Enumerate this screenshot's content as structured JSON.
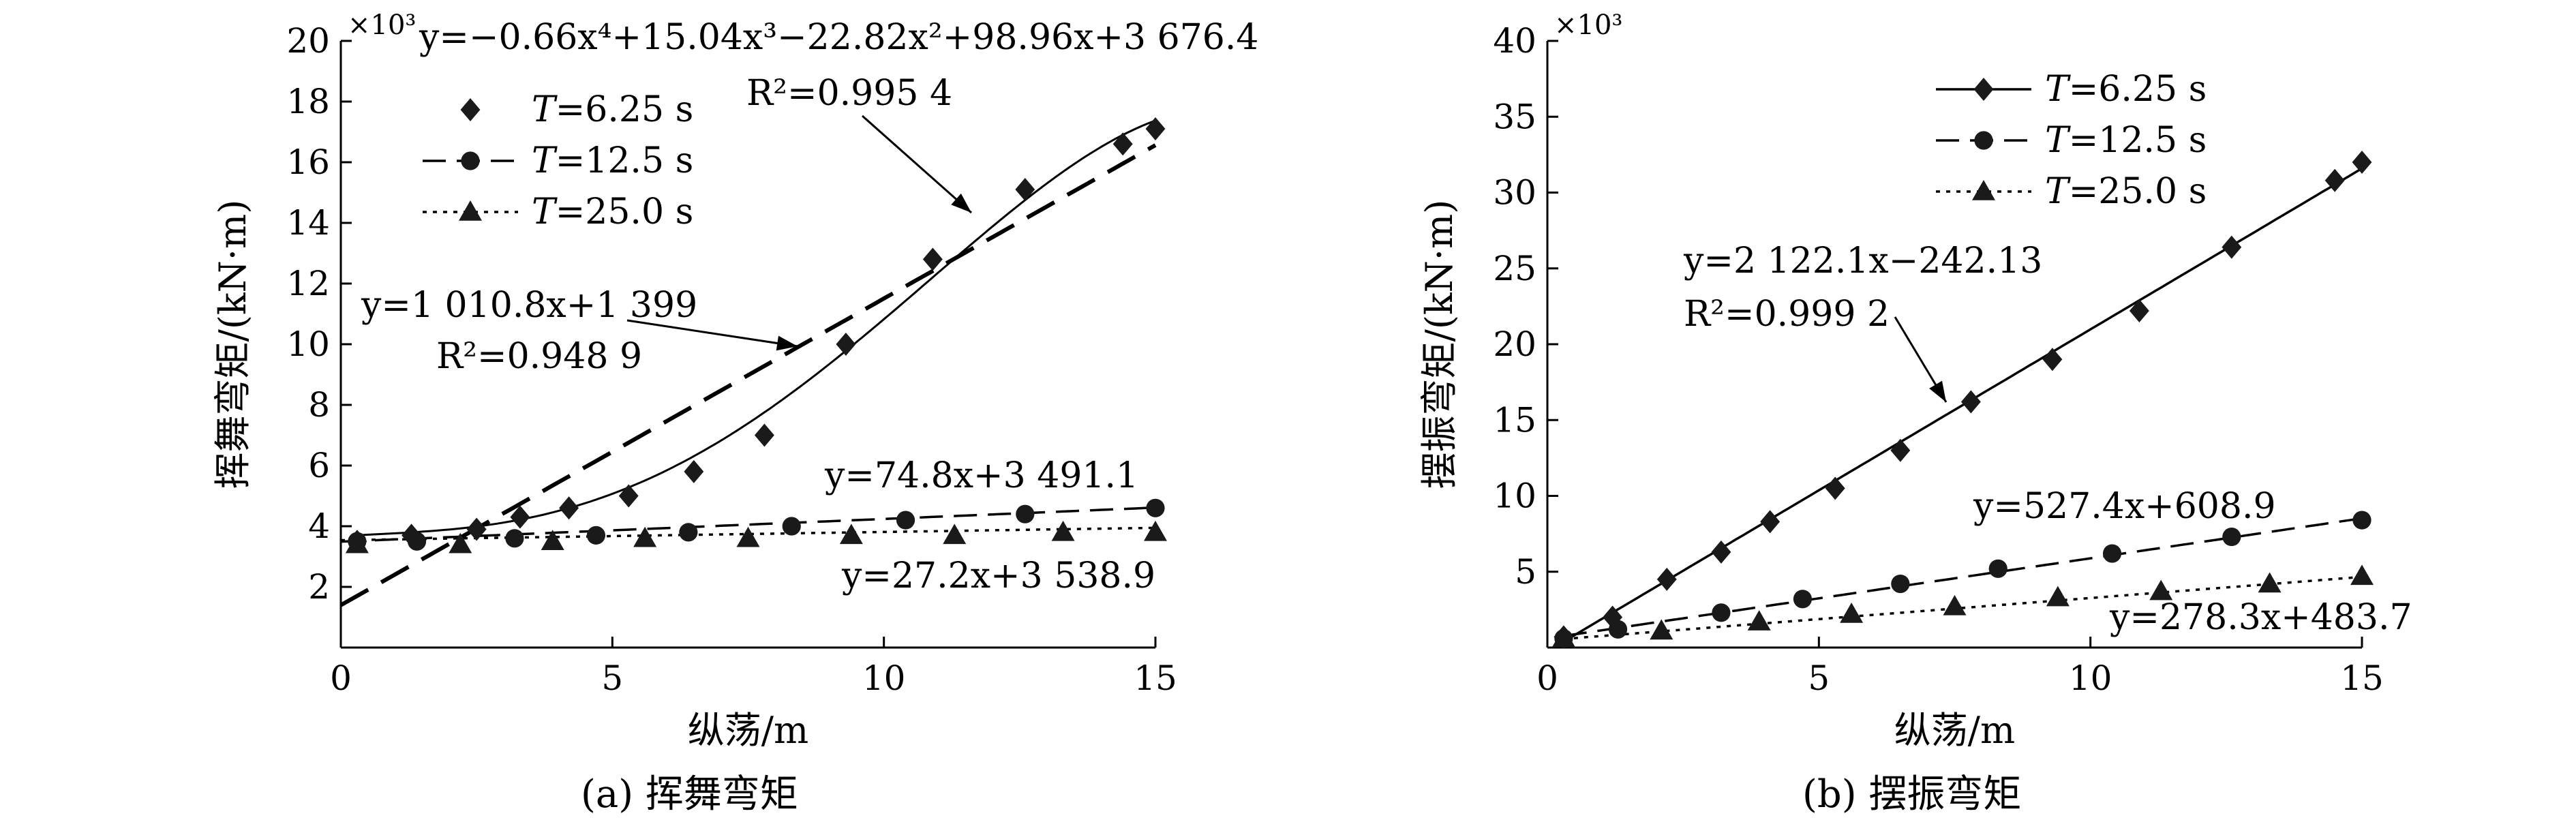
{
  "chart_data": [
    {
      "type": "scatter",
      "caption": "(a) 挥舞弯矩",
      "xlabel": "纵荡/m",
      "ylabel": "挥舞弯矩/(kN·m)",
      "y_multiplier": "×10³",
      "xlim": [
        0,
        15
      ],
      "ylim": [
        0,
        20
      ],
      "xticks": [
        0,
        5,
        10,
        15
      ],
      "yticks": [
        2,
        4,
        6,
        8,
        10,
        12,
        14,
        16,
        18,
        20
      ],
      "grid": false,
      "legend_position": "upper-left",
      "series": [
        {
          "name": "T=6.25 s",
          "legend_label": "=6.25 s",
          "marker": "diamond",
          "line": "none",
          "x": [
            0.3,
            1.3,
            2.5,
            3.3,
            4.2,
            5.3,
            6.5,
            7.8,
            9.3,
            10.9,
            12.6,
            14.4,
            15.0
          ],
          "y": [
            3.5,
            3.7,
            3.9,
            4.3,
            4.6,
            5.0,
            5.8,
            7.0,
            10.0,
            12.8,
            15.1,
            16.6,
            17.1
          ]
        },
        {
          "name": "T=12.5 s",
          "legend_label": "=12.5 s",
          "marker": "circle",
          "line": "dashed",
          "x": [
            0.3,
            1.4,
            3.2,
            4.7,
            6.4,
            8.3,
            10.4,
            12.6,
            15.0
          ],
          "y": [
            3.5,
            3.5,
            3.6,
            3.7,
            3.8,
            4.0,
            4.2,
            4.4,
            4.6
          ]
        },
        {
          "name": "T=25.0 s",
          "legend_label": "=25.0 s",
          "marker": "triangle",
          "line": "dotted",
          "x": [
            0.3,
            2.2,
            3.9,
            5.6,
            7.5,
            9.4,
            11.3,
            13.3,
            15.0
          ],
          "y": [
            3.4,
            3.4,
            3.5,
            3.6,
            3.6,
            3.7,
            3.7,
            3.8,
            3.8
          ]
        }
      ],
      "fits": [
        {
          "series": "T=6.25 s",
          "kind": "poly",
          "coeffs": [
            -0.66,
            15.04,
            -22.82,
            98.96,
            3676.4
          ],
          "x_from": 0.3,
          "x_to": 15.0
        },
        {
          "series": "T=6.25 s",
          "kind": "linear",
          "slope": 1010.8,
          "intercept": 1399,
          "x_from": 0.0,
          "x_to": 15.0
        },
        {
          "series": "T=12.5 s",
          "kind": "linear",
          "slope": 74.8,
          "intercept": 3491.1,
          "x_from": 0.0,
          "x_to": 15.0
        },
        {
          "series": "T=25.0 s",
          "kind": "linear",
          "slope": 27.2,
          "intercept": 3538.9,
          "x_from": 0.0,
          "x_to": 15.0
        }
      ],
      "annotations": [
        {
          "text": "y=−0.66x⁴+15.04x³−22.82x²+98.96x+3 676.4",
          "r2": "R²=0.995 4"
        },
        {
          "text": "y=1 010.8x+1 399",
          "r2": "R²=0.948 9"
        },
        {
          "text": "y=74.8x+3 491.1"
        },
        {
          "text": "y=27.2x+3 538.9"
        }
      ]
    },
    {
      "type": "scatter",
      "caption": "(b) 摆振弯矩",
      "xlabel": "纵荡/m",
      "ylabel": "摆振弯矩/(kN·m)",
      "y_multiplier": "×10³",
      "xlim": [
        0,
        15
      ],
      "ylim": [
        0,
        40
      ],
      "xticks": [
        0,
        5,
        10,
        15
      ],
      "yticks": [
        5,
        10,
        15,
        20,
        25,
        30,
        35,
        40
      ],
      "grid": false,
      "legend_position": "upper-center",
      "series": [
        {
          "name": "T=6.25 s",
          "legend_label": "=6.25 s",
          "marker": "diamond",
          "line": "solid",
          "x": [
            0.3,
            1.2,
            2.2,
            3.2,
            4.1,
            5.3,
            6.5,
            7.8,
            9.3,
            10.9,
            12.6,
            14.5,
            15.0
          ],
          "y": [
            0.7,
            2.0,
            4.5,
            6.3,
            8.3,
            10.5,
            13.0,
            16.2,
            19.0,
            22.2,
            26.4,
            30.8,
            32.0
          ]
        },
        {
          "name": "T=12.5 s",
          "legend_label": "=12.5 s",
          "marker": "circle",
          "line": "dashed",
          "x": [
            0.3,
            1.3,
            3.2,
            4.7,
            6.5,
            8.3,
            10.4,
            12.6,
            15.0
          ],
          "y": [
            0.6,
            1.2,
            2.3,
            3.2,
            4.2,
            5.2,
            6.2,
            7.3,
            8.4
          ]
        },
        {
          "name": "T=25.0 s",
          "legend_label": "=25.0 s",
          "marker": "triangle",
          "line": "dotted",
          "x": [
            0.3,
            2.1,
            3.9,
            5.6,
            7.5,
            9.4,
            11.3,
            13.3,
            15.0
          ],
          "y": [
            0.6,
            1.1,
            1.7,
            2.2,
            2.7,
            3.3,
            3.7,
            4.2,
            4.7
          ]
        }
      ],
      "fits": [
        {
          "series": "T=6.25 s",
          "kind": "linear",
          "slope": 2122.1,
          "intercept": -242.13,
          "x_from": 0.3,
          "x_to": 15.0
        },
        {
          "series": "T=12.5 s",
          "kind": "linear",
          "slope": 527.4,
          "intercept": 608.9,
          "x_from": 0.3,
          "x_to": 15.0
        },
        {
          "series": "T=25.0 s",
          "kind": "linear",
          "slope": 278.3,
          "intercept": 483.7,
          "x_from": 0.3,
          "x_to": 15.0
        }
      ],
      "annotations": [
        {
          "text": "y=2 122.1x−242.13",
          "r2": "R²=0.999 2"
        },
        {
          "text": "y=527.4x+608.9"
        },
        {
          "text": "y=278.3x+483.7"
        }
      ]
    }
  ]
}
